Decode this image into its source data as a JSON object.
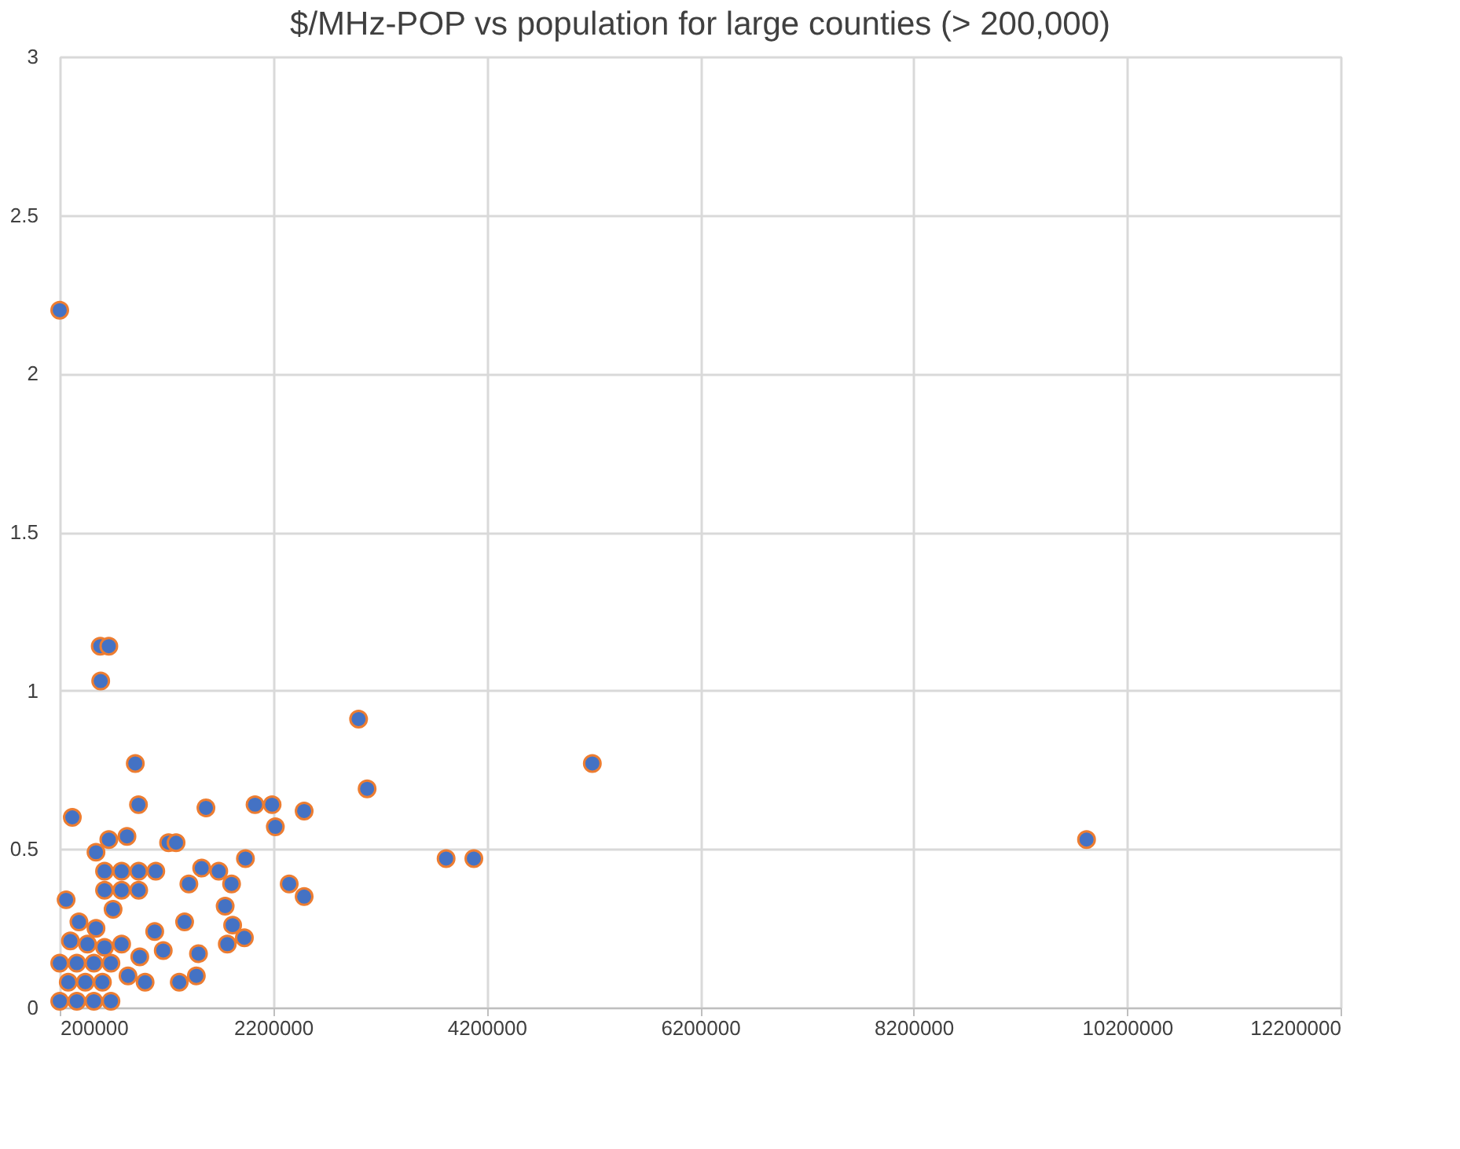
{
  "chart_data": {
    "type": "scatter",
    "title": "$/MHz-POP vs population for large counties (> 200,000)",
    "x": [
      200000,
      580000,
      660000,
      584000,
      318000,
      908000,
      938000,
      1570000,
      2030000,
      2190000,
      2220000,
      2490000,
      3000000,
      3080000,
      1940000,
      2350000,
      2490000,
      1530000,
      1410000,
      1690000,
      1810000,
      1750000,
      1820000,
      1930000,
      1770000,
      1370000,
      1500000,
      1480000,
      1320000,
      1220000,
      1290000,
      660000,
      830000,
      540000,
      260000,
      1170000,
      1090000,
      3820000,
      4080000,
      5190000,
      9820000,
      620000,
      780000,
      940000,
      1100000,
      620000,
      780000,
      940000,
      700000,
      380000,
      540000,
      300000,
      460000,
      620000,
      780000,
      950000,
      200000,
      360000,
      520000,
      680000,
      280000,
      440000,
      600000,
      840000,
      1000000,
      200000,
      360000,
      520000,
      680000
    ],
    "series": [
      {
        "color": "#4472c4",
        "marker": "circle",
        "values": [
          2.2,
          1.14,
          1.14,
          1.03,
          0.6,
          0.77,
          0.64,
          0.63,
          0.64,
          0.64,
          0.57,
          0.62,
          0.91,
          0.69,
          0.47,
          0.39,
          0.35,
          0.44,
          0.39,
          0.43,
          0.39,
          0.32,
          0.26,
          0.22,
          0.2,
          0.27,
          0.17,
          0.1,
          0.08,
          0.52,
          0.52,
          0.53,
          0.54,
          0.49,
          0.34,
          0.18,
          0.24,
          0.47,
          0.47,
          0.77,
          0.53,
          0.43,
          0.43,
          0.43,
          0.43,
          0.37,
          0.37,
          0.37,
          0.31,
          0.27,
          0.25,
          0.21,
          0.2,
          0.19,
          0.2,
          0.16,
          0.14,
          0.14,
          0.14,
          0.14,
          0.08,
          0.08,
          0.08,
          0.1,
          0.08,
          0.02,
          0.02,
          0.02,
          0.02
        ]
      }
    ],
    "xlim": [
      200000,
      12200000
    ],
    "xticks": [
      200000,
      2200000,
      4200000,
      6200000,
      8200000,
      10200000,
      12200000
    ],
    "ylim": [
      0,
      3
    ],
    "yticks": [
      0,
      0.5,
      1,
      1.5,
      2,
      2.5,
      3
    ],
    "grid": true
  }
}
